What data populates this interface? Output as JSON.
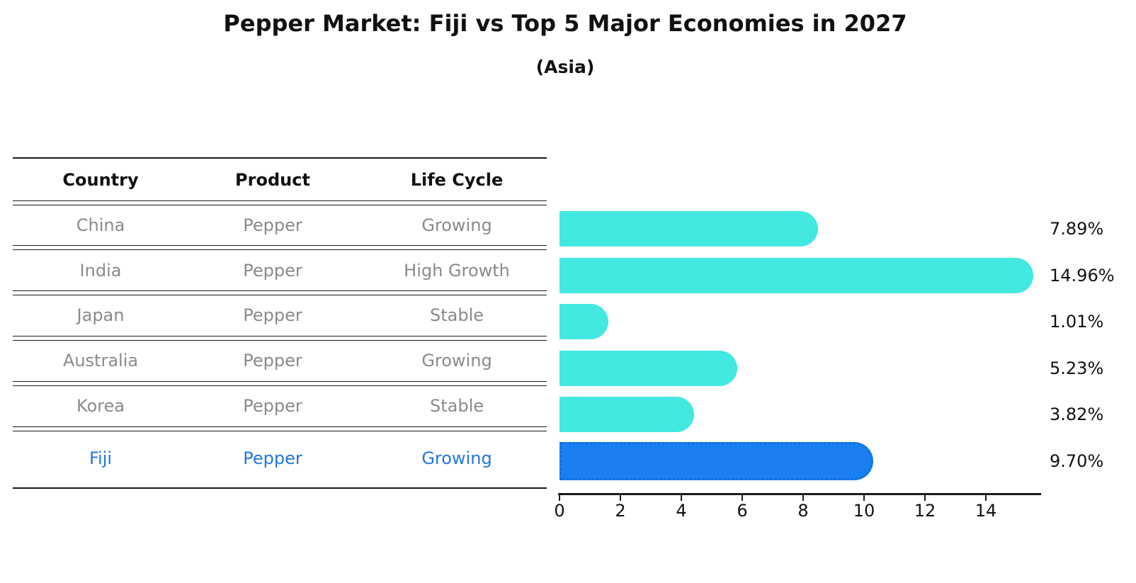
{
  "title": "Pepper Market: Fiji vs Top 5 Major Economies in 2027",
  "subtitle": "(Asia)",
  "table": {
    "columns": [
      "Country",
      "Product",
      "Life Cycle"
    ],
    "rows": [
      {
        "country": "China",
        "product": "Pepper",
        "life_cycle": "Growing",
        "highlight": false
      },
      {
        "country": "India",
        "product": "Pepper",
        "life_cycle": "High Growth",
        "highlight": false
      },
      {
        "country": "Japan",
        "product": "Pepper",
        "life_cycle": "Stable",
        "highlight": false
      },
      {
        "country": "Australia",
        "product": "Pepper",
        "life_cycle": "Growing",
        "highlight": false
      },
      {
        "country": "Korea",
        "product": "Pepper",
        "life_cycle": "Stable",
        "highlight": false
      },
      {
        "country": "Fiji",
        "product": "Pepper",
        "life_cycle": "Growing",
        "highlight": true
      }
    ]
  },
  "chart_data": {
    "type": "bar",
    "orientation": "horizontal",
    "title": "Pepper Market: Fiji vs Top 5 Major Economies in 2027",
    "subtitle": "(Asia)",
    "categories": [
      "China",
      "India",
      "Japan",
      "Australia",
      "Korea",
      "Fiji"
    ],
    "values": [
      7.89,
      14.96,
      1.01,
      5.23,
      3.82,
      9.7
    ],
    "value_labels": [
      "7.89%",
      "14.96%",
      "1.01%",
      "5.23%",
      "3.82%",
      "9.70%"
    ],
    "xlabel": "",
    "ylabel": "",
    "xlim": [
      0,
      15.8
    ],
    "x_ticks": [
      0,
      2,
      4,
      6,
      8,
      10,
      12,
      14
    ],
    "grid": false,
    "legend": false,
    "highlight_category": "Fiji"
  },
  "colors": {
    "bar": "#43e8e0",
    "highlight_bar": "#1a80f2",
    "highlight_bar_border": "#0e6fe0",
    "highlight_text": "#2277dd",
    "table_text": "#8a8a8a",
    "header_text": "#111111",
    "line": "#1a1a1a"
  }
}
